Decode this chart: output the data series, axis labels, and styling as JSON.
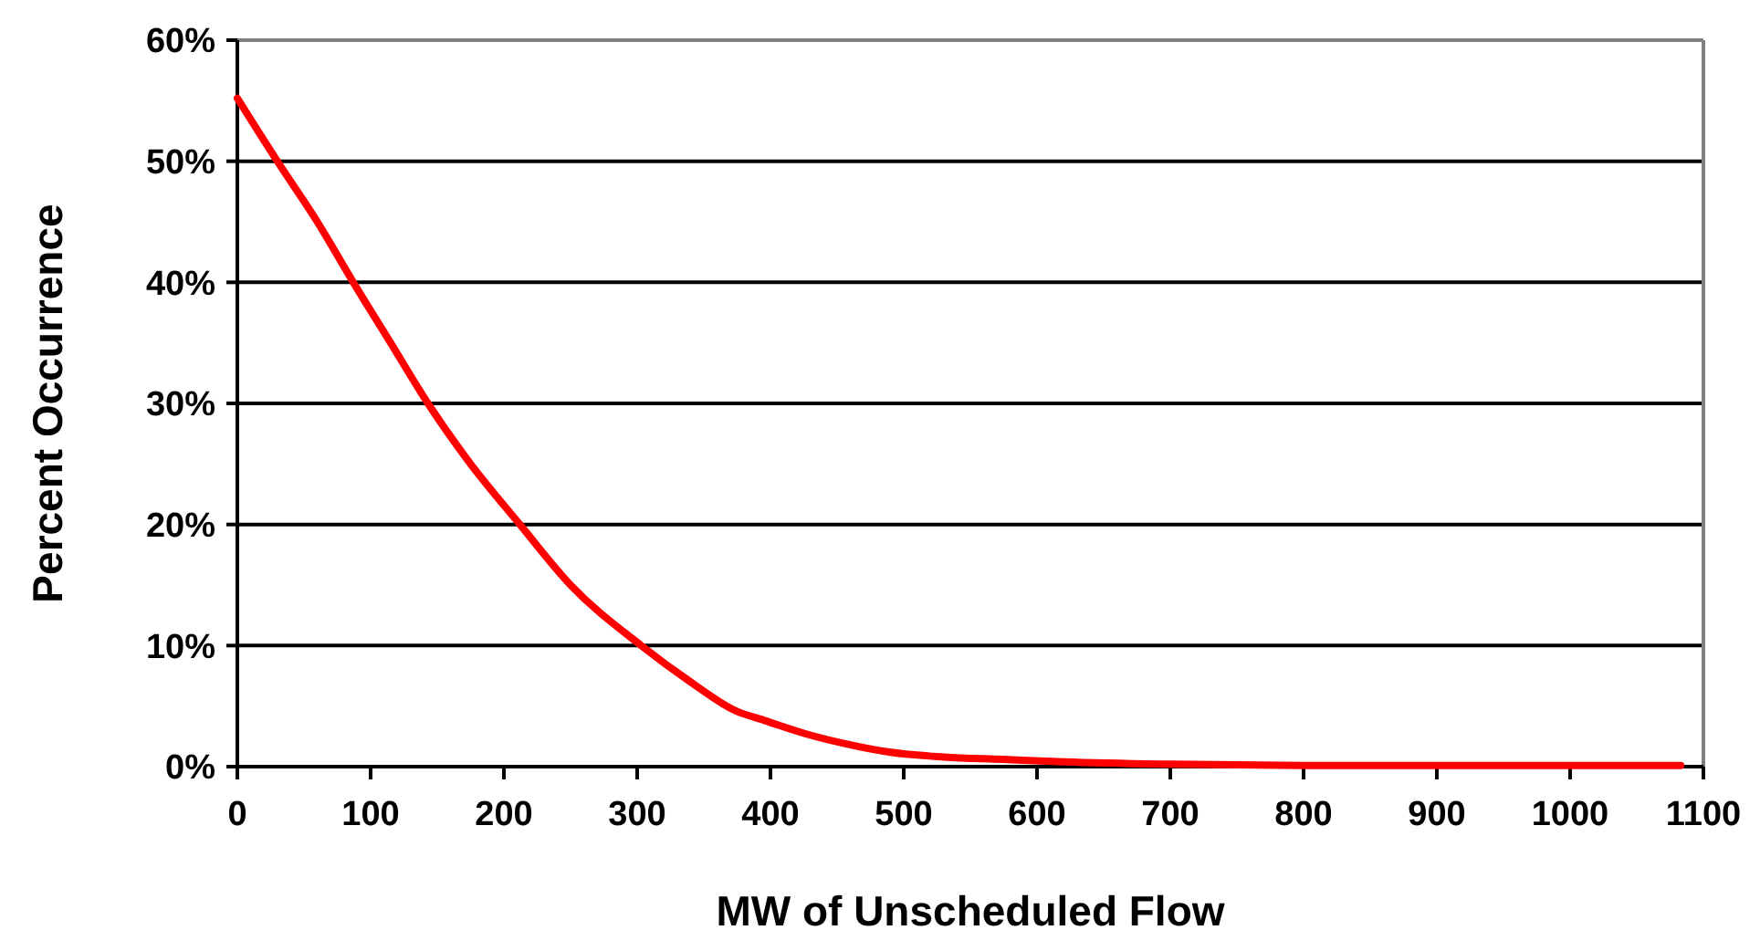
{
  "chart_data": {
    "type": "line",
    "xlabel": "MW of Unscheduled Flow",
    "ylabel": "Percent Occurrence",
    "x": [
      0,
      30,
      60,
      87,
      115,
      143,
      175,
      212,
      250,
      303,
      340,
      374,
      396,
      430,
      460,
      489,
      530,
      574,
      620,
      700,
      800,
      900,
      1000,
      1083
    ],
    "series": [
      {
        "color": "#ff0000",
        "values": [
          55.2,
          50,
          45,
          40,
          35,
          30,
          25,
          20,
          15,
          10,
          7,
          4.6,
          3.8,
          2.6,
          1.8,
          1.2,
          0.8,
          0.6,
          0.4,
          0.2,
          0.1,
          0.1,
          0.1,
          0.1
        ]
      }
    ],
    "xlim": [
      0,
      1100
    ],
    "xticks": [
      0,
      100,
      200,
      300,
      400,
      500,
      600,
      700,
      800,
      900,
      1000,
      1100
    ],
    "ylim": [
      0,
      60
    ],
    "yticks": [
      {
        "value": 0,
        "label": "0%"
      },
      {
        "value": 10,
        "label": "10%"
      },
      {
        "value": 20,
        "label": "20%"
      },
      {
        "value": 30,
        "label": "30%"
      },
      {
        "value": 40,
        "label": "40%"
      },
      {
        "value": 50,
        "label": "50%"
      },
      {
        "value": 60,
        "label": "60%"
      }
    ],
    "grid": "y",
    "marker": "none",
    "line_style": "solid"
  }
}
